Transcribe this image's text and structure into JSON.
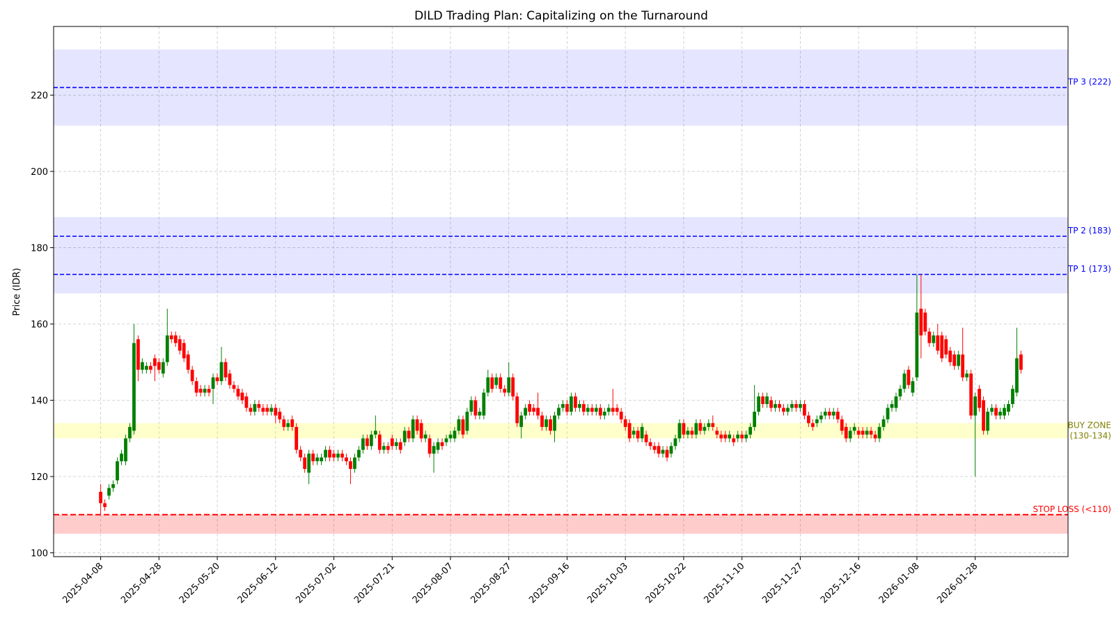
{
  "chart_data": {
    "type": "candlestick",
    "title": "DILD Trading Plan: Capitalizing on the Turnaround",
    "ylabel": "Price (IDR)",
    "ylim": [
      99,
      238
    ],
    "yticks": [
      100,
      120,
      140,
      160,
      180,
      200,
      220
    ],
    "grid": true,
    "up_color": "#008000",
    "down_color": "#ff0000",
    "categories": [
      "2025-04-08",
      null,
      null,
      null,
      null,
      null,
      null,
      null,
      null,
      null,
      null,
      null,
      null,
      null,
      "2025-04-28",
      null,
      null,
      null,
      null,
      null,
      null,
      null,
      null,
      null,
      null,
      null,
      null,
      null,
      "2025-05-20",
      null,
      null,
      null,
      null,
      null,
      null,
      null,
      null,
      null,
      null,
      null,
      null,
      null,
      "2025-06-12",
      null,
      null,
      null,
      null,
      null,
      null,
      null,
      null,
      null,
      null,
      null,
      null,
      null,
      "2025-07-02",
      null,
      null,
      null,
      null,
      null,
      null,
      null,
      null,
      null,
      null,
      null,
      null,
      null,
      "2025-07-21",
      null,
      null,
      null,
      null,
      null,
      null,
      null,
      null,
      null,
      null,
      null,
      null,
      null,
      "2025-08-07",
      null,
      null,
      null,
      null,
      null,
      null,
      null,
      null,
      null,
      null,
      null,
      null,
      null,
      "2025-08-27",
      null,
      null,
      null,
      null,
      null,
      null,
      null,
      null,
      null,
      null,
      null,
      null,
      null,
      "2025-09-16",
      null,
      null,
      null,
      null,
      null,
      null,
      null,
      null,
      null,
      null,
      null,
      null,
      null,
      "2025-10-03",
      null,
      null,
      null,
      null,
      null,
      null,
      null,
      null,
      null,
      null,
      null,
      null,
      null,
      "2025-10-22",
      null,
      null,
      null,
      null,
      null,
      null,
      null,
      null,
      null,
      null,
      null,
      null,
      null,
      "2025-11-10",
      null,
      null,
      null,
      null,
      null,
      null,
      null,
      null,
      null,
      null,
      null,
      null,
      null,
      "2025-11-27",
      null,
      null,
      null,
      null,
      null,
      null,
      null,
      null,
      null,
      null,
      null,
      null,
      null,
      "2025-12-16",
      null,
      null,
      null,
      null,
      null,
      null,
      null,
      null,
      null,
      null,
      null,
      null,
      null,
      "2026-01-08",
      null,
      null,
      null,
      null,
      null,
      null,
      null,
      null,
      null,
      null,
      null,
      null,
      null,
      "2026-01-28",
      null,
      null,
      null,
      null,
      null,
      null,
      null,
      null,
      null,
      null,
      null
    ],
    "open": [
      116,
      113,
      115,
      117,
      119,
      124,
      124,
      130,
      132,
      156,
      148,
      148,
      149,
      151,
      150,
      147,
      150,
      157,
      157,
      156,
      155,
      152,
      148,
      145,
      143,
      142,
      143,
      143,
      146,
      145,
      150,
      147,
      144,
      143,
      142,
      141,
      138,
      137,
      139,
      138,
      138,
      137,
      138,
      137,
      135,
      133,
      135,
      133,
      127,
      125,
      121,
      126,
      124,
      124,
      125,
      127,
      126,
      125,
      126,
      125,
      124,
      122,
      125,
      127,
      130,
      128,
      131,
      131,
      127,
      128,
      130,
      128,
      129,
      129,
      132,
      130,
      135,
      134,
      130,
      130,
      126,
      127,
      129,
      129,
      130,
      130,
      132,
      135,
      132,
      137,
      140,
      136,
      136,
      142,
      146,
      144,
      146,
      143,
      142,
      146,
      141,
      133,
      136,
      139,
      138,
      138,
      136,
      133,
      135,
      132,
      136,
      138,
      139,
      137,
      141,
      138,
      139,
      137,
      138,
      137,
      138,
      136,
      137,
      138,
      138,
      137,
      135,
      134,
      131,
      132,
      130,
      131,
      129,
      128,
      128,
      126,
      127,
      126,
      128,
      130,
      134,
      131,
      132,
      131,
      134,
      132,
      133,
      134,
      132,
      131,
      131,
      130,
      130,
      130,
      131,
      130,
      131,
      133,
      137,
      141,
      139,
      140,
      138,
      139,
      138,
      137,
      138,
      139,
      138,
      139,
      136,
      134,
      134,
      135,
      136,
      137,
      136,
      137,
      135,
      133,
      130,
      132,
      132,
      132,
      131,
      132,
      131,
      130,
      133,
      135,
      138,
      138,
      141,
      143,
      148,
      142,
      146,
      164,
      163,
      158,
      155,
      157,
      157,
      156,
      153,
      152,
      149,
      152,
      146,
      147,
      136,
      143,
      140,
      132,
      137,
      138,
      136,
      136,
      137,
      139,
      142,
      152
    ],
    "high": [
      118,
      114,
      118,
      119,
      125,
      127,
      131,
      134,
      160,
      157,
      151,
      150,
      150,
      152,
      151,
      151,
      164,
      158,
      158,
      157,
      156,
      153,
      149,
      146,
      144,
      144,
      144,
      147,
      147,
      154,
      151,
      148,
      145,
      144,
      143,
      142,
      139,
      140,
      140,
      139,
      139,
      139,
      139,
      138,
      136,
      135,
      136,
      134,
      128,
      126,
      127,
      127,
      126,
      126,
      128,
      128,
      127,
      127,
      127,
      126,
      125,
      126,
      128,
      131,
      131,
      132,
      136,
      132,
      129,
      129,
      131,
      130,
      130,
      133,
      133,
      136,
      136,
      135,
      132,
      131,
      129,
      130,
      130,
      131,
      132,
      133,
      136,
      136,
      138,
      141,
      141,
      138,
      143,
      148,
      147,
      147,
      147,
      144,
      150,
      147,
      142,
      137,
      139,
      140,
      139,
      142,
      137,
      136,
      136,
      137,
      139,
      140,
      140,
      142,
      142,
      140,
      140,
      139,
      139,
      139,
      139,
      138,
      139,
      143,
      139,
      138,
      136,
      135,
      133,
      133,
      134,
      132,
      130,
      129,
      129,
      128,
      128,
      129,
      131,
      135,
      135,
      133,
      133,
      135,
      135,
      134,
      135,
      136,
      133,
      132,
      132,
      132,
      131,
      132,
      132,
      132,
      134,
      144,
      142,
      142,
      142,
      141,
      140,
      140,
      139,
      139,
      140,
      140,
      140,
      140,
      137,
      135,
      136,
      137,
      138,
      138,
      138,
      138,
      136,
      134,
      133,
      134,
      133,
      133,
      133,
      133,
      132,
      134,
      136,
      139,
      140,
      142,
      144,
      148,
      149,
      146,
      173,
      173,
      164,
      159,
      158,
      160,
      158,
      157,
      154,
      153,
      153,
      159,
      148,
      148,
      142,
      144,
      141,
      138,
      139,
      139,
      138,
      139,
      140,
      144,
      159,
      153
    ],
    "low": [
      110,
      111,
      114,
      116,
      118,
      123,
      123,
      129,
      131,
      145,
      147,
      147,
      147,
      145,
      147,
      146,
      149,
      155,
      154,
      152,
      150,
      147,
      144,
      141,
      141,
      141,
      141,
      139,
      144,
      144,
      145,
      143,
      142,
      140,
      139,
      137,
      136,
      136,
      137,
      136,
      136,
      136,
      134,
      134,
      132,
      132,
      132,
      126,
      124,
      121,
      118,
      123,
      123,
      123,
      124,
      124,
      124,
      124,
      124,
      123,
      118,
      121,
      124,
      126,
      127,
      127,
      130,
      126,
      126,
      126,
      127,
      127,
      126,
      128,
      129,
      129,
      131,
      129,
      129,
      125,
      121,
      126,
      127,
      128,
      129,
      129,
      131,
      130,
      131,
      136,
      135,
      135,
      135,
      141,
      142,
      143,
      142,
      141,
      141,
      140,
      133,
      130,
      135,
      136,
      136,
      135,
      132,
      132,
      131,
      129,
      135,
      137,
      136,
      136,
      137,
      137,
      136,
      136,
      136,
      136,
      135,
      135,
      136,
      136,
      136,
      134,
      132,
      129,
      130,
      129,
      129,
      128,
      127,
      126,
      125,
      125,
      124,
      125,
      127,
      129,
      130,
      130,
      130,
      130,
      131,
      131,
      132,
      132,
      130,
      129,
      129,
      129,
      128,
      129,
      129,
      129,
      130,
      132,
      136,
      138,
      138,
      137,
      137,
      137,
      136,
      136,
      137,
      137,
      137,
      135,
      133,
      132,
      133,
      134,
      135,
      135,
      135,
      134,
      131,
      129,
      129,
      131,
      130,
      130,
      130,
      130,
      129,
      129,
      132,
      134,
      137,
      137,
      140,
      142,
      143,
      141,
      145,
      151,
      157,
      154,
      154,
      152,
      150,
      151,
      149,
      148,
      148,
      145,
      145,
      135,
      120,
      137,
      131,
      131,
      136,
      135,
      135,
      135,
      136,
      138,
      141,
      147
    ],
    "close": [
      113,
      112,
      117,
      118,
      124,
      126,
      130,
      133,
      155,
      148,
      150,
      149,
      148,
      149,
      148,
      150,
      157,
      156,
      155,
      153,
      151,
      148,
      145,
      142,
      142,
      143,
      142,
      146,
      145,
      150,
      146,
      144,
      143,
      141,
      140,
      138,
      137,
      139,
      138,
      137,
      137,
      138,
      136,
      135,
      133,
      134,
      133,
      127,
      125,
      122,
      126,
      124,
      125,
      125,
      127,
      125,
      125,
      126,
      125,
      124,
      122,
      125,
      127,
      130,
      128,
      131,
      132,
      127,
      128,
      127,
      128,
      129,
      127,
      132,
      130,
      135,
      132,
      130,
      131,
      126,
      128,
      129,
      128,
      130,
      131,
      132,
      135,
      131,
      137,
      140,
      136,
      137,
      142,
      146,
      143,
      146,
      143,
      142,
      146,
      141,
      134,
      136,
      138,
      137,
      137,
      136,
      133,
      135,
      132,
      136,
      138,
      139,
      137,
      141,
      138,
      139,
      137,
      138,
      137,
      138,
      136,
      137,
      138,
      137,
      137,
      135,
      133,
      130,
      132,
      130,
      133,
      129,
      128,
      127,
      126,
      127,
      125,
      128,
      130,
      134,
      131,
      132,
      131,
      134,
      132,
      133,
      134,
      133,
      131,
      130,
      130,
      131,
      129,
      131,
      130,
      131,
      133,
      137,
      141,
      139,
      141,
      138,
      139,
      138,
      137,
      138,
      139,
      138,
      139,
      136,
      134,
      133,
      135,
      136,
      137,
      136,
      137,
      135,
      132,
      130,
      132,
      133,
      131,
      131,
      132,
      131,
      130,
      133,
      135,
      138,
      139,
      141,
      143,
      147,
      144,
      145,
      163,
      157,
      158,
      155,
      157,
      153,
      151,
      152,
      150,
      149,
      152,
      146,
      147,
      136,
      141,
      138,
      132,
      137,
      138,
      136,
      137,
      138,
      139,
      143,
      151,
      148
    ],
    "zones": [
      {
        "label": "TP 3 (222)",
        "level": 222,
        "band": [
          212,
          232
        ],
        "color": "#0000ff",
        "band_alpha": 0.1
      },
      {
        "label": "TP 2 (183)",
        "level": 183,
        "band": [
          178,
          188
        ],
        "color": "#0000ff",
        "band_alpha": 0.1
      },
      {
        "label": "TP 1 (173)",
        "level": 173,
        "band": [
          168,
          178
        ],
        "color": "#0000ff",
        "band_alpha": 0.1
      },
      {
        "label": [
          "BUY ZONE",
          "(130-134)"
        ],
        "band": [
          130,
          134
        ],
        "color": "#ffff00",
        "label_color": "#808000",
        "band_alpha": 0.2
      },
      {
        "label": "STOP LOSS (<110)",
        "level": 110,
        "band": [
          105,
          110
        ],
        "color": "#ff0000",
        "band_alpha": 0.2
      }
    ]
  }
}
